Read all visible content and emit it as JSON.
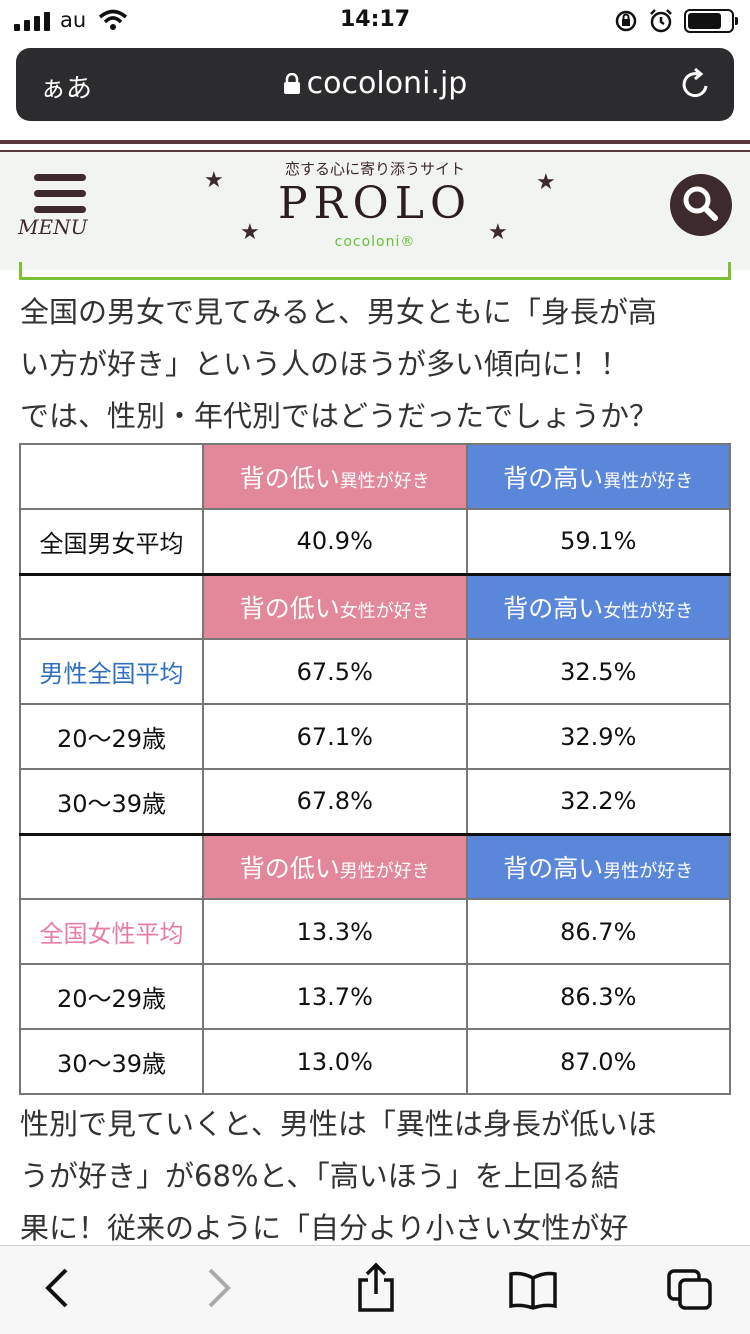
{
  "status": {
    "carrier": "au",
    "time": "14:17"
  },
  "browser": {
    "aa_label": "ぁあ",
    "url": "cocoloni.jp"
  },
  "header": {
    "tagline": "恋する心に寄り添うサイト",
    "logo": "PROLO",
    "sublogo": "cocoloni®",
    "menu_label": "MENU"
  },
  "article": {
    "intro_lines": [
      "全国の男女で見てみると、男女ともに「身長が高",
      "い方が好き」という人のほうが多い傾向に！！",
      "では、性別・年代別ではどうだったでしょうか？"
    ],
    "outro_lines": [
      "性別で見ていくと、男性は「異性は身長が低いほ",
      "うが好き」が68%と、「高いほう」を上回る結",
      "果に！従来のように「自分より小さい女性が好"
    ]
  },
  "table": {
    "s1": {
      "low_a": "背の低い",
      "low_b": "異性が好き",
      "high_a": "背の高い",
      "high_b": "異性が好き",
      "row": [
        "全国男女平均",
        "40.9%",
        "59.1%"
      ]
    },
    "s2": {
      "low_a": "背の低い",
      "low_b": "女性が好き",
      "high_a": "背の高い",
      "high_b": "女性が好き",
      "rows": [
        [
          "男性全国平均",
          "67.5%",
          "32.5%"
        ],
        [
          "20〜29歳",
          "67.1%",
          "32.9%"
        ],
        [
          "30〜39歳",
          "67.8%",
          "32.2%"
        ]
      ]
    },
    "s3": {
      "low_a": "背の低い",
      "low_b": "男性が好き",
      "high_a": "背の高い",
      "high_b": "男性が好き",
      "rows": [
        [
          "全国女性平均",
          "13.3%",
          "86.7%"
        ],
        [
          "20〜29歳",
          "13.7%",
          "86.3%"
        ],
        [
          "30〜39歳",
          "13.0%",
          "87.0%"
        ]
      ]
    }
  },
  "colors": {
    "low_header": "#e3889b",
    "high_header": "#5b87db",
    "brand": "#3d2a2c",
    "accent_green": "#7cc03a"
  }
}
